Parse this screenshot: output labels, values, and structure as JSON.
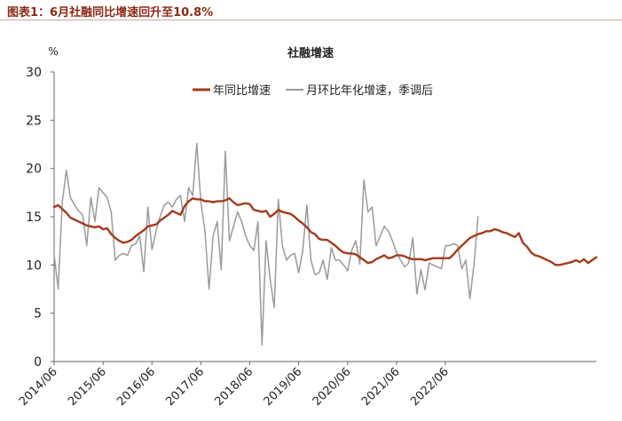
{
  "figure_title": "图表1：6月社融同比增速回升至10.8%",
  "chart_data": {
    "type": "line",
    "title": "社融增速",
    "ylabel": "%",
    "ylim": [
      0,
      30
    ],
    "yticks": [
      0,
      5,
      10,
      15,
      20,
      25,
      30
    ],
    "xticks": [
      "2014/06",
      "2015/06",
      "2016/06",
      "2017/06",
      "2018/06",
      "2019/06",
      "2020/06",
      "2021/06",
      "2022/06"
    ],
    "grid": false,
    "legend_position": "top",
    "x_start": "2014/06",
    "x_end": "2022/06",
    "series": [
      {
        "name": "年同比增速",
        "color": "#a33b1c",
        "values": [
          16.0,
          16.2,
          15.8,
          15.4,
          14.9,
          14.7,
          14.5,
          14.3,
          14.1,
          14.0,
          13.9,
          14.0,
          13.7,
          13.8,
          13.2,
          12.8,
          12.5,
          12.3,
          12.4,
          12.6,
          13.0,
          13.3,
          13.6,
          14.0,
          14.1,
          14.2,
          14.6,
          14.9,
          15.2,
          15.6,
          15.4,
          15.2,
          16.1,
          16.6,
          16.9,
          16.8,
          16.8,
          16.6,
          16.6,
          16.5,
          16.6,
          16.6,
          16.7,
          16.9,
          16.5,
          16.2,
          16.3,
          16.4,
          16.3,
          15.7,
          15.6,
          15.5,
          15.6,
          15.0,
          15.3,
          15.7,
          15.5,
          15.4,
          15.3,
          15.0,
          14.6,
          14.3,
          13.9,
          13.4,
          13.2,
          12.7,
          12.6,
          12.6,
          12.3,
          12.0,
          11.6,
          11.3,
          11.2,
          11.2,
          11.1,
          10.8,
          10.5,
          10.2,
          10.3,
          10.6,
          10.8,
          11.0,
          10.7,
          10.8,
          11.0,
          11.0,
          10.9,
          10.7,
          10.6,
          10.6,
          10.6,
          10.5,
          10.6,
          10.7,
          10.7,
          10.7,
          10.7,
          10.7,
          11.1,
          11.6,
          12.0,
          12.4,
          12.8,
          13.0,
          13.2,
          13.3,
          13.5,
          13.5,
          13.7,
          13.6,
          13.4,
          13.3,
          13.1,
          12.9,
          13.3,
          12.3,
          11.9,
          11.3,
          11.0,
          10.9,
          10.7,
          10.5,
          10.3,
          10.0,
          10.0,
          10.1,
          10.2,
          10.3,
          10.5,
          10.3,
          10.6,
          10.2,
          10.5,
          10.8
        ]
      },
      {
        "name": "月环比年化增速，季调后",
        "color": "#9a9a9a",
        "values": [
          11.0,
          7.5,
          16.5,
          19.8,
          17.0,
          16.2,
          15.6,
          15.2,
          12.0,
          17.0,
          14.5,
          18.0,
          17.5,
          17.0,
          15.5,
          10.5,
          11.0,
          11.2,
          11.0,
          12.0,
          12.2,
          13.0,
          9.3,
          16.0,
          11.6,
          13.5,
          15.0,
          16.2,
          16.5,
          16.0,
          16.8,
          17.2,
          14.5,
          18.0,
          17.2,
          22.6,
          16.5,
          13.5,
          7.5,
          13.0,
          14.5,
          9.5,
          21.8,
          12.5,
          14.0,
          15.5,
          14.5,
          13.0,
          12.0,
          11.5,
          14.5,
          1.7,
          12.5,
          8.5,
          5.6,
          16.8,
          12.0,
          10.5,
          11.0,
          11.2,
          9.2,
          11.5,
          16.2,
          10.5,
          9.0,
          9.2,
          10.5,
          8.5,
          11.8,
          10.5,
          10.5,
          10.0,
          9.4,
          11.5,
          12.5,
          10.1,
          18.8,
          15.5,
          16.0,
          12.0,
          13.0,
          14.0,
          13.5,
          12.5,
          11.3,
          10.5,
          9.8,
          10.2,
          12.8,
          7.0,
          9.5,
          7.4,
          10.2,
          10.0,
          9.8,
          9.6,
          12.0,
          12.0,
          12.2,
          12.0,
          9.6,
          10.5,
          6.5,
          10.0,
          15.0
        ]
      }
    ]
  }
}
